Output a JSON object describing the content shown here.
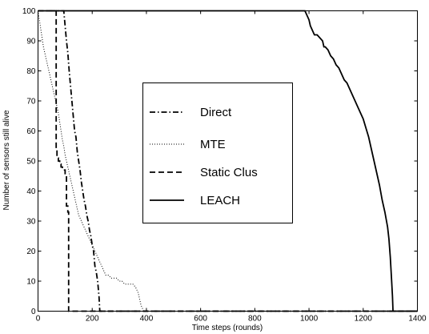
{
  "chart_data": {
    "type": "line",
    "title": "",
    "xlabel": "Time steps (rounds)",
    "ylabel": "Number of sensors still alive",
    "xlim": [
      0,
      1400
    ],
    "ylim": [
      0,
      100
    ],
    "xticks": [
      0,
      200,
      400,
      600,
      800,
      1000,
      1200,
      1400
    ],
    "yticks": [
      0,
      10,
      20,
      30,
      40,
      50,
      60,
      70,
      80,
      90,
      100
    ],
    "grid": false,
    "legend_position": "center-left",
    "series": [
      {
        "name": "Direct",
        "style": "dashdot",
        "color": "#000000",
        "x": [
          0,
          95,
          100,
          105,
          110,
          115,
          120,
          125,
          130,
          135,
          140,
          145,
          150,
          155,
          160,
          165,
          170,
          175,
          180,
          185,
          190,
          195,
          200,
          205,
          210,
          215,
          220,
          225,
          228,
          1400
        ],
        "y": [
          100,
          100,
          95,
          90,
          86,
          80,
          75,
          70,
          65,
          60,
          58,
          53,
          50,
          47,
          43,
          40,
          37,
          35,
          32,
          30,
          27,
          25,
          22,
          20,
          15,
          13,
          10,
          5,
          0,
          0
        ]
      },
      {
        "name": "MTE",
        "style": "dotted",
        "color": "#000000",
        "x": [
          0,
          5,
          10,
          15,
          20,
          25,
          30,
          35,
          40,
          45,
          50,
          55,
          60,
          65,
          70,
          75,
          80,
          85,
          90,
          95,
          100,
          110,
          120,
          130,
          140,
          150,
          160,
          170,
          180,
          190,
          200,
          210,
          220,
          230,
          240,
          250,
          260,
          270,
          280,
          290,
          300,
          310,
          320,
          330,
          340,
          350,
          360,
          370,
          375,
          380,
          385,
          390,
          1400
        ],
        "y": [
          100,
          97,
          94,
          91,
          88,
          86,
          84,
          82,
          80,
          78,
          76,
          74,
          72,
          70,
          68,
          66,
          63,
          60,
          57,
          55,
          52,
          48,
          44,
          40,
          36,
          32,
          30,
          28,
          26,
          24,
          22,
          20,
          18,
          16,
          14,
          12,
          12,
          11,
          11,
          11,
          10,
          10,
          9,
          9,
          9,
          9,
          8,
          6,
          4,
          2,
          1,
          0,
          0
        ]
      },
      {
        "name": "Static Clus",
        "style": "dashed",
        "color": "#000000",
        "x": [
          0,
          67,
          67,
          70,
          70,
          75,
          75,
          80,
          80,
          85,
          85,
          90,
          90,
          100,
          100,
          105,
          105,
          110,
          110,
          113,
          113,
          1400
        ],
        "y": [
          100,
          100,
          54,
          54,
          51,
          51,
          50,
          50,
          49,
          49,
          48,
          48,
          47,
          47,
          45,
          45,
          35,
          35,
          33,
          33,
          0,
          0
        ]
      },
      {
        "name": "LEACH",
        "style": "solid",
        "color": "#000000",
        "x": [
          0,
          985,
          990,
          995,
          1000,
          1005,
          1010,
          1015,
          1020,
          1030,
          1040,
          1050,
          1055,
          1060,
          1070,
          1080,
          1090,
          1100,
          1110,
          1120,
          1130,
          1140,
          1150,
          1160,
          1170,
          1180,
          1190,
          1200,
          1210,
          1220,
          1230,
          1240,
          1250,
          1260,
          1270,
          1280,
          1290,
          1295,
          1300,
          1305,
          1308,
          1310,
          1400
        ],
        "y": [
          100,
          100,
          99,
          98,
          97,
          95,
          94,
          93,
          92,
          92,
          91,
          90,
          88,
          88,
          87,
          85,
          84,
          82,
          81,
          79,
          77,
          76,
          74,
          72,
          70,
          68,
          66,
          64,
          61,
          58,
          54,
          50,
          46,
          42,
          37,
          33,
          28,
          24,
          18,
          10,
          5,
          0,
          0
        ]
      }
    ]
  }
}
